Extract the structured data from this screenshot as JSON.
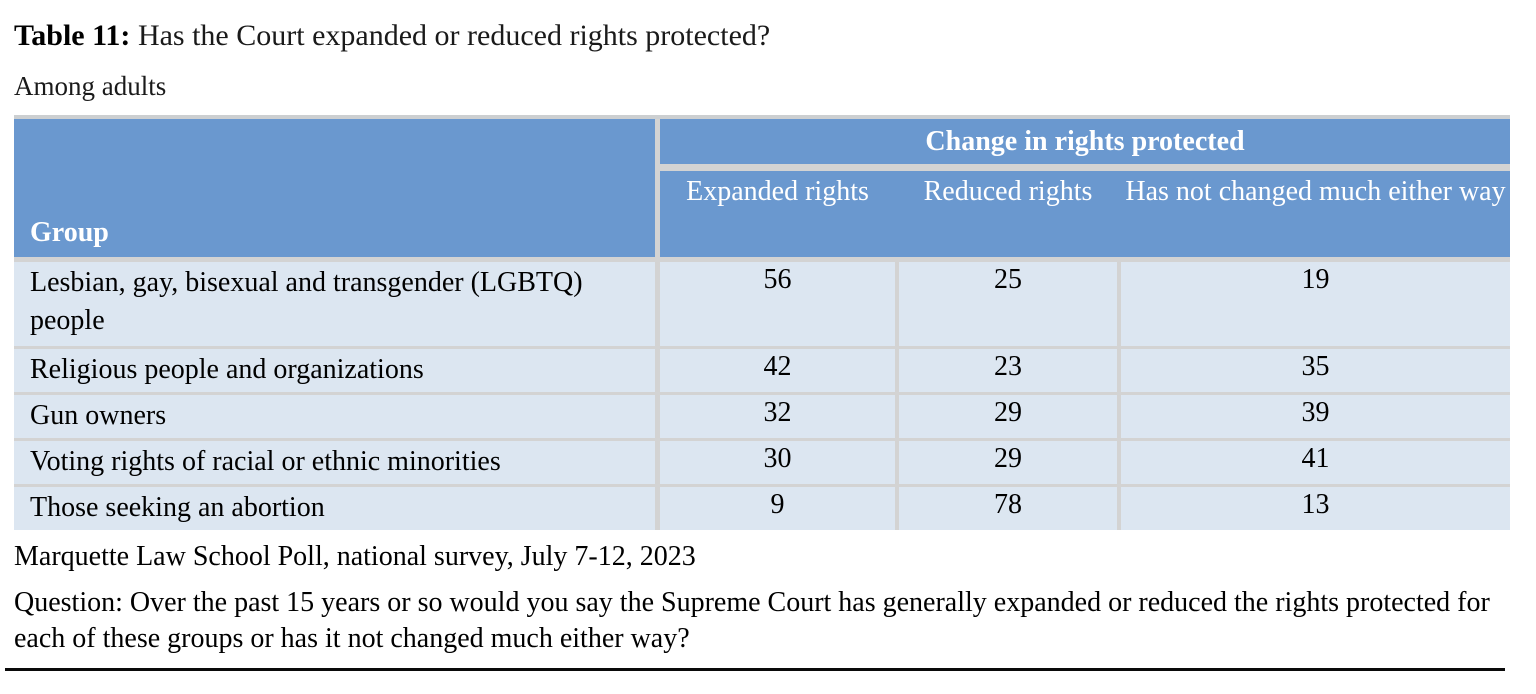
{
  "title_prefix": "Table 11:",
  "title_rest": " Has the Court expanded or reduced rights protected?",
  "subtitle": "Among adults",
  "source": "Marquette Law School Poll, national survey, July 7-12, 2023",
  "question": "Question: Over the past 15 years or so would you say the Supreme Court has generally expanded or reduced the rights protected for each of these groups or has it not changed much either way?",
  "colors": {
    "header_blue": "#6A98CF",
    "row_light_blue": "#DCE6F1",
    "divider_gray": "#D3D3D3",
    "header_text": "#FFFFFF"
  },
  "chart_data": {
    "type": "table",
    "title": "Table 11: Has the Court expanded or reduced rights protected?",
    "subtitle": "Among adults",
    "group_header": "Group",
    "span_header": "Change in rights protected",
    "columns": [
      "Expanded rights",
      "Reduced rights",
      "Has not changed much either way"
    ],
    "rows": [
      {
        "group": "Lesbian, gay, bisexual and transgender (LGBTQ) people",
        "values": [
          56,
          25,
          19
        ]
      },
      {
        "group": "Religious people and organizations",
        "values": [
          42,
          23,
          35
        ]
      },
      {
        "group": "Gun owners",
        "values": [
          32,
          29,
          39
        ]
      },
      {
        "group": "Voting rights of racial or ethnic minorities",
        "values": [
          30,
          29,
          41
        ]
      },
      {
        "group": "Those seeking an abortion",
        "values": [
          9,
          78,
          13
        ]
      }
    ],
    "source": "Marquette Law School Poll, national survey, July 7-12, 2023",
    "question": "Question: Over the past 15 years or so would you say the Supreme Court has generally expanded or reduced the rights protected for each of these groups or has it not changed much either way?",
    "units": "percent"
  }
}
